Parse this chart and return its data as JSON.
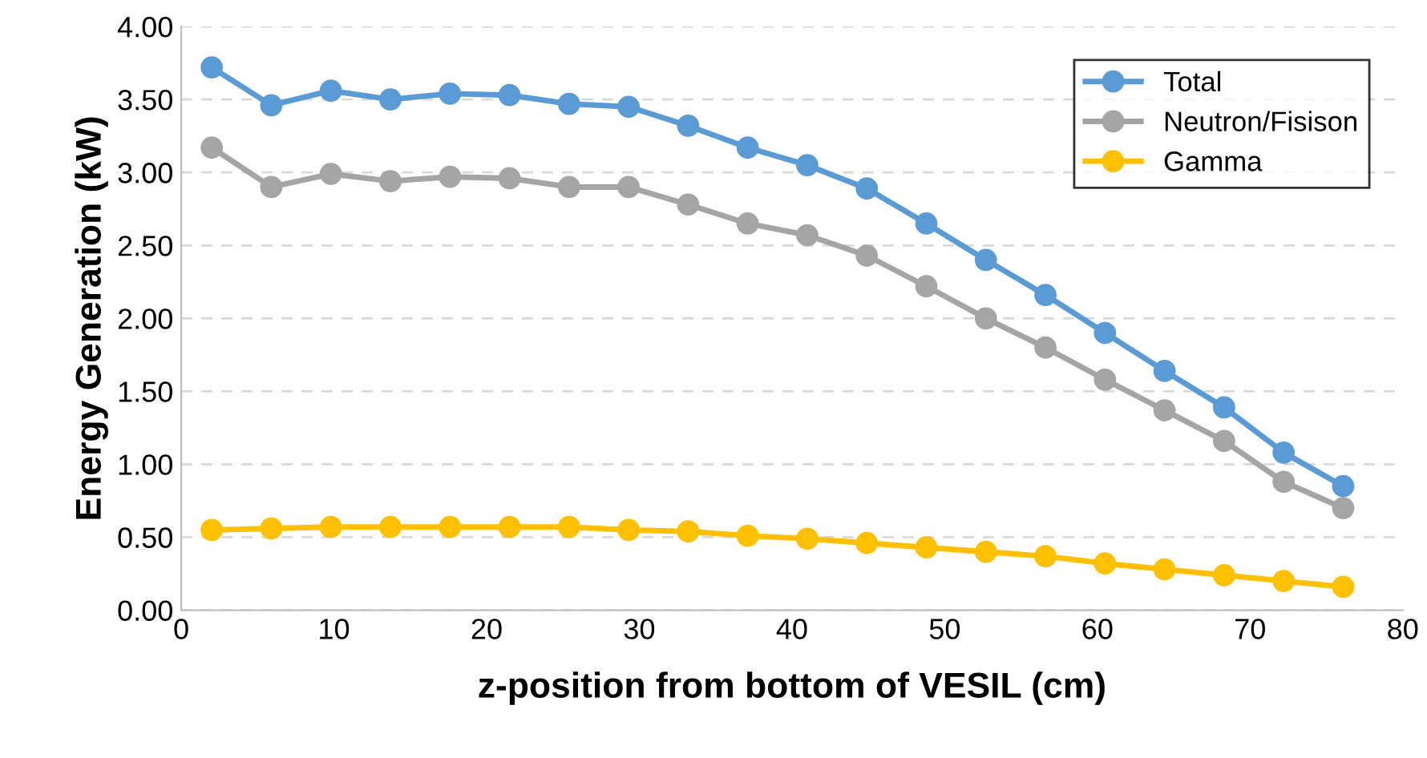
{
  "chart_data": {
    "type": "line",
    "xlabel": "z-position from bottom of VESIL (cm)",
    "ylabel": "Energy Generation (kW)",
    "x": [
      2.0,
      5.9,
      9.8,
      13.7,
      17.6,
      21.5,
      25.4,
      29.3,
      33.2,
      37.1,
      41.0,
      44.9,
      48.8,
      52.7,
      56.6,
      60.5,
      64.4,
      68.3,
      72.2,
      76.1
    ],
    "series": [
      {
        "name": "Total",
        "color": "#5b9bd5",
        "values": [
          3.72,
          3.46,
          3.56,
          3.5,
          3.54,
          3.53,
          3.47,
          3.45,
          3.32,
          3.17,
          3.05,
          2.89,
          2.65,
          2.4,
          2.16,
          1.9,
          1.64,
          1.39,
          1.08,
          0.85
        ]
      },
      {
        "name": "Neutron/Fisison",
        "color": "#a5a5a5",
        "values": [
          3.17,
          2.9,
          2.99,
          2.94,
          2.97,
          2.96,
          2.9,
          2.9,
          2.78,
          2.65,
          2.57,
          2.43,
          2.22,
          2.0,
          1.8,
          1.58,
          1.37,
          1.16,
          0.88,
          0.7
        ]
      },
      {
        "name": "Gamma",
        "color": "#ffc000",
        "values": [
          0.55,
          0.56,
          0.57,
          0.57,
          0.57,
          0.57,
          0.57,
          0.55,
          0.54,
          0.51,
          0.49,
          0.46,
          0.43,
          0.4,
          0.37,
          0.32,
          0.28,
          0.24,
          0.2,
          0.16
        ]
      }
    ],
    "xlim": [
      0,
      80
    ],
    "xticks": [
      0,
      10,
      20,
      30,
      40,
      50,
      60,
      70,
      80
    ],
    "ylim": [
      0,
      4
    ],
    "yticks": [
      {
        "value": 0,
        "label": "0.00"
      },
      {
        "value": 0.5,
        "label": "0.50"
      },
      {
        "value": 1,
        "label": "1.00"
      },
      {
        "value": 1.5,
        "label": "1.50"
      },
      {
        "value": 2,
        "label": "2.00"
      },
      {
        "value": 2.5,
        "label": "2.50"
      },
      {
        "value": 3,
        "label": "3.00"
      },
      {
        "value": 3.5,
        "label": "3.50"
      },
      {
        "value": 4,
        "label": "4.00"
      }
    ],
    "grid": "y",
    "legend": "top right",
    "marker": "circle",
    "line_style": "solid"
  }
}
